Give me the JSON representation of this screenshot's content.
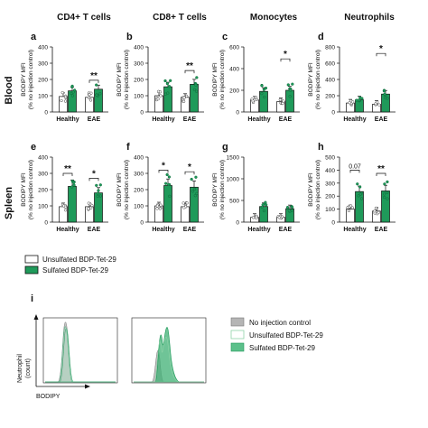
{
  "columns": [
    "CD4+ T cells",
    "CD8+ T cells",
    "Monocytes",
    "Neutrophils"
  ],
  "rows": [
    "Blood",
    "Spleen"
  ],
  "groups": [
    "Healthy",
    "EAE"
  ],
  "ylabel": [
    "BODIPY MFI",
    "(% no injection control)"
  ],
  "colors": {
    "unsulfated": "#ffffff",
    "sulfated": "#1f9a5a",
    "sulfated_light": "#8fd3a8",
    "control": "#b5b5b5",
    "edge": "#111111"
  },
  "legend_ab": {
    "unsulfated": "Unsulfated BDP-Tet-29",
    "sulfated": "Sulfated BDP-Tet-29"
  },
  "legend_i": {
    "control": "No injection control",
    "unsulfated": "Unsulfated BDP-Tet-29",
    "sulfated": "Sulfated BDP-Tet-29"
  },
  "panel_i": {
    "letter": "i",
    "xlabel": "BODIPY",
    "ylabel": [
      "Neutrophil",
      "(count)"
    ]
  },
  "chart_data": [
    {
      "type": "bar",
      "letter": "a",
      "title": "CD4+ T cells",
      "row": "Blood",
      "categories": [
        "Healthy",
        "EAE"
      ],
      "ylim": [
        0,
        400
      ],
      "yticks": [
        0,
        100,
        200,
        300,
        400
      ],
      "series": [
        {
          "name": "Unsulfated BDP-Tet-29",
          "values": [
            95,
            90
          ]
        },
        {
          "name": "Sulfated BDP-Tet-29",
          "values": [
            130,
            140
          ]
        }
      ],
      "significance": [
        {
          "group": "EAE",
          "label": "**",
          "y": 195
        }
      ]
    },
    {
      "type": "bar",
      "letter": "b",
      "title": "CD8+ T cells",
      "row": "Blood",
      "categories": [
        "Healthy",
        "EAE"
      ],
      "ylim": [
        0,
        400
      ],
      "yticks": [
        0,
        100,
        200,
        300,
        400
      ],
      "series": [
        {
          "name": "Unsulfated BDP-Tet-29",
          "values": [
            100,
            90
          ]
        },
        {
          "name": "Sulfated BDP-Tet-29",
          "values": [
            155,
            170
          ]
        }
      ],
      "significance": [
        {
          "group": "EAE",
          "label": "**",
          "y": 255
        }
      ]
    },
    {
      "type": "bar",
      "letter": "c",
      "title": "Monocytes",
      "row": "Blood",
      "categories": [
        "Healthy",
        "EAE"
      ],
      "ylim": [
        0,
        600
      ],
      "yticks": [
        0,
        200,
        400,
        600
      ],
      "series": [
        {
          "name": "Unsulfated BDP-Tet-29",
          "values": [
            110,
            95
          ]
        },
        {
          "name": "Sulfated BDP-Tet-29",
          "values": [
            190,
            200
          ]
        }
      ],
      "significance": [
        {
          "group": "EAE",
          "label": "*",
          "y": 490
        }
      ]
    },
    {
      "type": "bar",
      "letter": "d",
      "title": "Neutrophils",
      "row": "Blood",
      "categories": [
        "Healthy",
        "EAE"
      ],
      "ylim": [
        0,
        800
      ],
      "yticks": [
        0,
        200,
        400,
        600,
        800
      ],
      "series": [
        {
          "name": "Unsulfated BDP-Tet-29",
          "values": [
            110,
            95
          ]
        },
        {
          "name": "Sulfated BDP-Tet-29",
          "values": [
            150,
            220
          ]
        }
      ],
      "significance": [
        {
          "group": "EAE",
          "label": "*",
          "y": 720
        }
      ]
    },
    {
      "type": "bar",
      "letter": "e",
      "title": "CD4+ T cells",
      "row": "Spleen",
      "categories": [
        "Healthy",
        "EAE"
      ],
      "ylim": [
        0,
        400
      ],
      "yticks": [
        0,
        100,
        200,
        300,
        400
      ],
      "series": [
        {
          "name": "Unsulfated BDP-Tet-29",
          "values": [
            95,
            95
          ]
        },
        {
          "name": "Sulfated BDP-Tet-29",
          "values": [
            220,
            180
          ]
        }
      ],
      "significance": [
        {
          "group": "Healthy",
          "label": "**",
          "y": 300
        },
        {
          "group": "EAE",
          "label": "*",
          "y": 270
        }
      ]
    },
    {
      "type": "bar",
      "letter": "f",
      "title": "CD8+ T cells",
      "row": "Spleen",
      "categories": [
        "Healthy",
        "EAE"
      ],
      "ylim": [
        0,
        400
      ],
      "yticks": [
        0,
        100,
        200,
        300,
        400
      ],
      "series": [
        {
          "name": "Unsulfated BDP-Tet-29",
          "values": [
            100,
            95
          ]
        },
        {
          "name": "Sulfated BDP-Tet-29",
          "values": [
            225,
            215
          ]
        }
      ],
      "significance": [
        {
          "group": "Healthy",
          "label": "*",
          "y": 320
        },
        {
          "group": "EAE",
          "label": "*",
          "y": 310
        }
      ]
    },
    {
      "type": "bar",
      "letter": "g",
      "title": "Monocytes",
      "row": "Spleen",
      "categories": [
        "Healthy",
        "EAE"
      ],
      "ylim": [
        0,
        1500
      ],
      "yticks": [
        0,
        500,
        1000,
        1500
      ],
      "series": [
        {
          "name": "Unsulfated BDP-Tet-29",
          "values": [
            110,
            110
          ]
        },
        {
          "name": "Sulfated BDP-Tet-29",
          "values": [
            360,
            310
          ]
        }
      ],
      "significance": []
    },
    {
      "type": "bar",
      "letter": "h",
      "title": "Neutrophils",
      "row": "Spleen",
      "categories": [
        "Healthy",
        "EAE"
      ],
      "ylim": [
        0,
        500
      ],
      "yticks": [
        0,
        100,
        200,
        300,
        400,
        500
      ],
      "series": [
        {
          "name": "Unsulfated BDP-Tet-29",
          "values": [
            100,
            85
          ]
        },
        {
          "name": "Sulfated BDP-Tet-29",
          "values": [
            235,
            240
          ]
        }
      ],
      "significance": [
        {
          "group": "Healthy",
          "label": "0.07",
          "y": 400
        },
        {
          "group": "EAE",
          "label": "**",
          "y": 375
        }
      ]
    }
  ]
}
